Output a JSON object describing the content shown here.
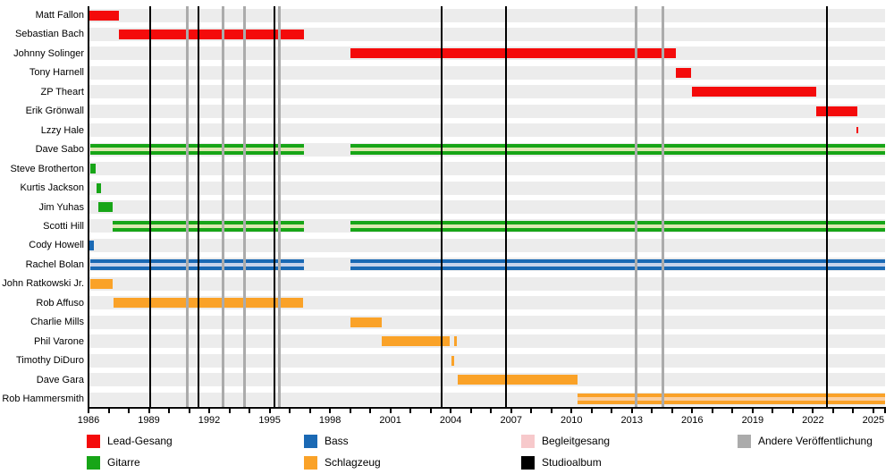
{
  "chart_data": {
    "type": "timeline",
    "title": "",
    "xlabel": "",
    "ylabel": "",
    "xlim": [
      1986,
      2025.6
    ],
    "x_tick_years": [
      1986,
      1989,
      1992,
      1995,
      1998,
      2001,
      2004,
      2007,
      2010,
      2013,
      2016,
      2019,
      2022,
      2025
    ],
    "x_minor_tick_step": 1,
    "grid": false,
    "legend_position": "bottom",
    "roles": {
      "lead_vocals": {
        "label": "Lead-Gesang",
        "color": "#f40b0b"
      },
      "guitar": {
        "label": "Gitarre",
        "color": "#17a517"
      },
      "bass": {
        "label": "Bass",
        "color": "#1a69b4"
      },
      "drums": {
        "label": "Schlagzeug",
        "color": "#faa228"
      },
      "backing_vocals": {
        "label": "Begleitgesang",
        "color": "#f7c9cb"
      },
      "studio_album": {
        "label": "Studioalbum",
        "color": "#000000"
      },
      "other_release": {
        "label": "Andere Veröffentlichung",
        "color": "#ababab"
      }
    },
    "members": [
      {
        "name": "Matt Fallon",
        "role": "lead_vocals",
        "stints": [
          [
            1986.05,
            1987.5
          ]
        ]
      },
      {
        "name": "Sebastian Bach",
        "role": "lead_vocals",
        "stints": [
          [
            1987.5,
            1996.7
          ]
        ]
      },
      {
        "name": "Johnny Solinger",
        "role": "lead_vocals",
        "stints": [
          [
            1999.0,
            2015.2
          ]
        ]
      },
      {
        "name": "Tony Harnell",
        "role": "lead_vocals",
        "stints": [
          [
            2015.2,
            2015.95
          ]
        ]
      },
      {
        "name": "ZP Theart",
        "role": "lead_vocals",
        "stints": [
          [
            2016.0,
            2022.15
          ]
        ]
      },
      {
        "name": "Erik Grönwall",
        "role": "lead_vocals",
        "stints": [
          [
            2022.15,
            2024.2
          ]
        ]
      },
      {
        "name": "Lzzy Hale",
        "role": "lead_vocals",
        "small_mark": true,
        "stints": [
          [
            2024.15,
            2024.25
          ]
        ]
      },
      {
        "name": "Dave Sabo",
        "role": "guitar",
        "backing_vocals": true,
        "stints": [
          [
            1986.1,
            1996.7
          ],
          [
            1999.0,
            2025.6
          ]
        ]
      },
      {
        "name": "Steve Brotherton",
        "role": "guitar",
        "stints": [
          [
            1986.1,
            1986.35
          ]
        ]
      },
      {
        "name": "Kurtis Jackson",
        "role": "guitar",
        "stints": [
          [
            1986.42,
            1986.62
          ]
        ]
      },
      {
        "name": "Jim Yuhas",
        "role": "guitar",
        "stints": [
          [
            1986.5,
            1987.2
          ]
        ]
      },
      {
        "name": "Scotti Hill",
        "role": "guitar",
        "backing_vocals": true,
        "stints": [
          [
            1987.2,
            1996.7
          ],
          [
            1999.0,
            2025.6
          ]
        ]
      },
      {
        "name": "Cody Howell",
        "role": "bass",
        "stints": [
          [
            1986.05,
            1986.25
          ]
        ]
      },
      {
        "name": "Rachel Bolan",
        "role": "bass",
        "backing_vocals": true,
        "stints": [
          [
            1986.1,
            1996.7
          ],
          [
            1999.0,
            2025.6
          ]
        ]
      },
      {
        "name": "John Ratkowski Jr.",
        "role": "drums",
        "stints": [
          [
            1986.1,
            1987.2
          ]
        ]
      },
      {
        "name": "Rob Affuso",
        "role": "drums",
        "stints": [
          [
            1987.25,
            1996.65
          ]
        ]
      },
      {
        "name": "Charlie Mills",
        "role": "drums",
        "stints": [
          [
            1999.0,
            2000.55
          ]
        ]
      },
      {
        "name": "Phil Varone",
        "role": "drums",
        "stints": [
          [
            2000.55,
            2003.95
          ],
          [
            2004.17,
            2004.32
          ]
        ]
      },
      {
        "name": "Timothy DiDuro",
        "role": "drums",
        "stints": [
          [
            2004.02,
            2004.17
          ]
        ]
      },
      {
        "name": "Dave Gara",
        "role": "drums",
        "stints": [
          [
            2004.35,
            2010.3
          ]
        ]
      },
      {
        "name": "Rob Hammersmith",
        "role": "drums",
        "backing_vocals": true,
        "stints": [
          [
            2010.3,
            2025.6
          ]
        ]
      }
    ],
    "studio_albums_years": [
      1989.05,
      1991.45,
      1995.25,
      2003.55,
      2006.75,
      2022.7
    ],
    "other_releases_years": [
      1990.9,
      1992.7,
      1993.75,
      1995.5,
      2013.2,
      2014.55
    ]
  },
  "legend": {
    "items": [
      {
        "label": "Lead-Gesang",
        "color": "#f40b0b"
      },
      {
        "label": "Gitarre",
        "color": "#17a517"
      },
      {
        "label": "Bass",
        "color": "#1a69b4"
      },
      {
        "label": "Schlagzeug",
        "color": "#faa228"
      },
      {
        "label": "Begleitgesang",
        "color": "#f7c9cb"
      },
      {
        "label": "Studioalbum",
        "color": "#000000"
      },
      {
        "label": "Andere Veröffentlichung",
        "color": "#ababab"
      }
    ]
  },
  "stripe_colors": {
    "guitar": "#dce8b0",
    "bass": "#c8d3eb",
    "drums": "#fbcfa0"
  },
  "colors": {
    "row_band": "#ececec",
    "background": "#ffffff",
    "axis": "#000000"
  }
}
